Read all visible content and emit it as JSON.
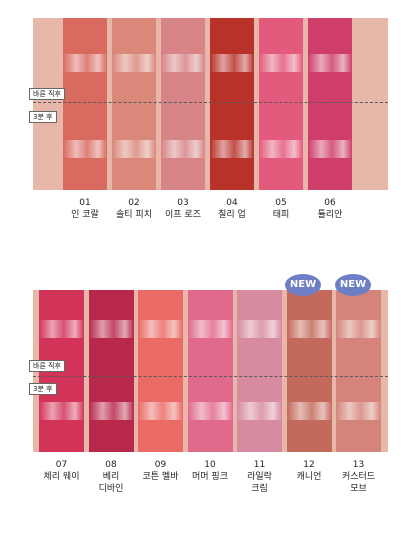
{
  "tag_applied": "바른 직후",
  "tag_after": "3분 후",
  "badge_new": "NEW",
  "group1": [
    {
      "num": "01",
      "name": "인 코랄",
      "color": "#d96a5f"
    },
    {
      "num": "02",
      "name": "솔티 피치",
      "color": "#d9887a"
    },
    {
      "num": "03",
      "name": "이프 로즈",
      "color": "#d78486"
    },
    {
      "num": "04",
      "name": "칠리 업",
      "color": "#b8322a"
    },
    {
      "num": "05",
      "name": "태피",
      "color": "#e35a7c"
    },
    {
      "num": "06",
      "name": "튤리안",
      "color": "#cf3e6a"
    }
  ],
  "group2": [
    {
      "num": "07",
      "name": "체리 웨이",
      "color": "#d23358"
    },
    {
      "num": "08",
      "name_line1": "베리",
      "name_line2": "디바인",
      "color": "#b8284a"
    },
    {
      "num": "09",
      "name": "코튼 멜바",
      "color": "#ea6a66"
    },
    {
      "num": "10",
      "name": "머머 핑크",
      "color": "#e06a8c"
    },
    {
      "num": "11",
      "name_line1": "라일락",
      "name_line2": "크림",
      "color": "#d78ba0"
    },
    {
      "num": "12",
      "name": "캐니언",
      "color": "#c46a5c"
    },
    {
      "num": "13",
      "name_line1": "커스터드",
      "name_line2": "모브",
      "color": "#d4847a"
    }
  ]
}
